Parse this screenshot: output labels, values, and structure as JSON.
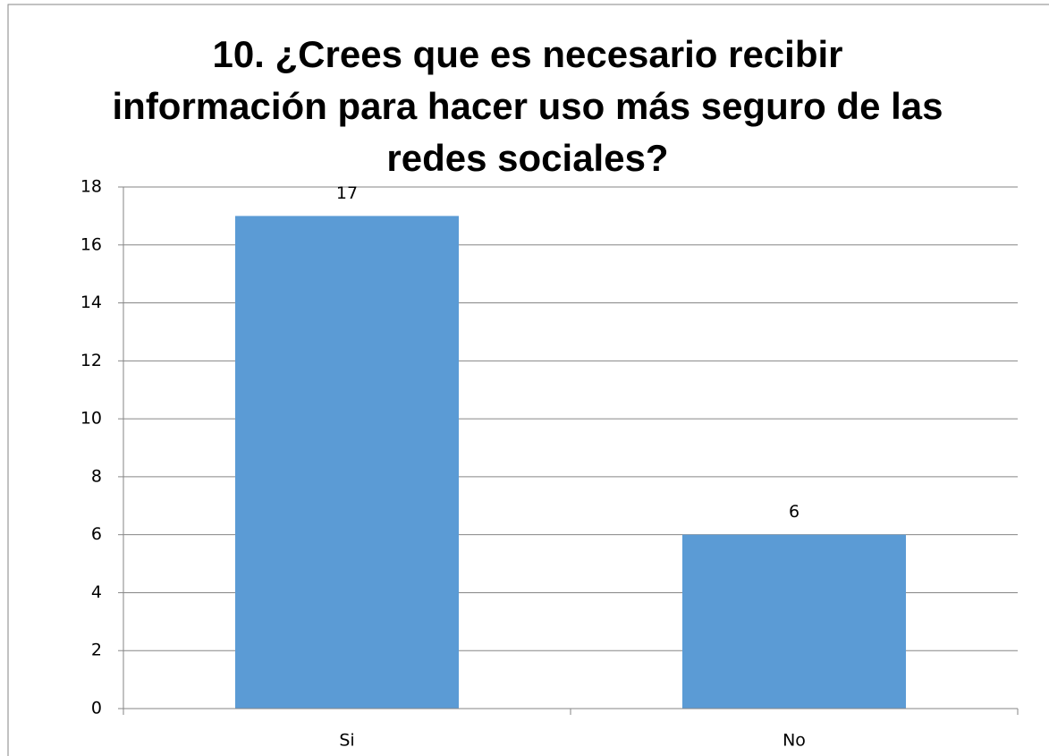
{
  "chart_data": {
    "type": "bar",
    "title": [
      "10.  ¿Crees que es necesario recibir",
      "información para hacer uso más seguro de las",
      "redes sociales?"
    ],
    "categories": [
      "Si",
      "No"
    ],
    "values": [
      17,
      6
    ],
    "color": "#5b9bd5",
    "ylim": [
      0,
      18
    ],
    "yticks": [
      0,
      2,
      4,
      6,
      8,
      10,
      12,
      14,
      16,
      18
    ],
    "grid": true
  }
}
